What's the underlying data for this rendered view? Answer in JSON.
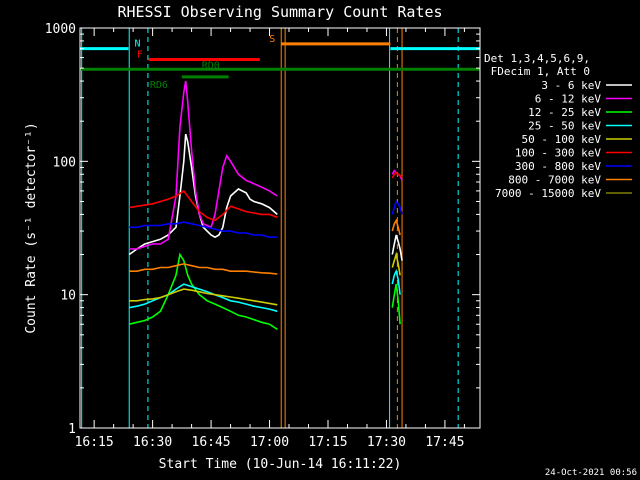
{
  "chart_data": {
    "type": "line",
    "title": "RHESSI Observing Summary Count Rates",
    "xlabel": "Start Time (10-Jun-14 16:11:22)",
    "ylabel": "Count Rate (s⁻¹ detector⁻¹)",
    "x_ticks": [
      "16:15",
      "16:30",
      "16:45",
      "17:00",
      "17:15",
      "17:30",
      "17:45"
    ],
    "x_tick_minutes": [
      15,
      30,
      45,
      60,
      75,
      90,
      105
    ],
    "xlim_minutes": [
      11.37,
      114.0
    ],
    "y_scale": "log",
    "ylim": [
      1,
      1000
    ],
    "y_ticks": [
      "1",
      "10",
      "100",
      "1000"
    ],
    "y_tick_values": [
      1,
      10,
      100,
      1000
    ],
    "legend": {
      "placement": "right",
      "header": [
        "Det 1,3,4,5,6,9,",
        "FDecim 1, Att 0"
      ]
    },
    "series": [
      {
        "name": "3 - 6 keV",
        "color": "#ffffff",
        "segments": [
          {
            "x": [
              24,
              26,
              28,
              30,
              32,
              34,
              36,
              37,
              38,
              38.5,
              39,
              40,
              41,
              42,
              43,
              45,
              46,
              47,
              48,
              49,
              50,
              52,
              54,
              55,
              56,
              58,
              60,
              62
            ],
            "y": [
              20,
              22,
              24,
              25,
              26,
              28,
              32,
              55,
              100,
              160,
              140,
              90,
              55,
              40,
              32,
              28,
              27,
              28,
              32,
              45,
              55,
              62,
              58,
              52,
              50,
              48,
              45,
              40
            ]
          },
          {
            "x": [
              91.5,
              92,
              92.5,
              93,
              93.5,
              94
            ],
            "y": [
              20,
              24,
              28,
              25,
              22,
              18
            ]
          }
        ]
      },
      {
        "name": "6 - 12 keV",
        "color": "#ff00ff",
        "segments": [
          {
            "x": [
              24,
              26,
              28,
              30,
              32,
              34,
              36,
              37,
              38,
              38.5,
              39,
              40,
              41,
              42,
              43,
              45,
              46,
              47,
              48,
              49,
              50,
              52,
              54,
              55,
              56,
              58,
              60,
              62
            ],
            "y": [
              22,
              22,
              23,
              24,
              24,
              26,
              55,
              180,
              330,
              400,
              280,
              120,
              60,
              40,
              34,
              32,
              40,
              60,
              90,
              110,
              100,
              80,
              72,
              70,
              68,
              64,
              60,
              55
            ]
          },
          {
            "x": [
              91.5,
              92,
              92.5,
              93,
              93.5,
              94
            ],
            "y": [
              80,
              85,
              82,
              80,
              78,
              72
            ]
          }
        ]
      },
      {
        "name": "12 - 25 keV",
        "color": "#00ff00",
        "segments": [
          {
            "x": [
              24,
              26,
              28,
              30,
              32,
              34,
              36,
              37,
              38,
              39,
              40,
              42,
              44,
              46,
              48,
              50,
              52,
              54,
              56,
              58,
              60,
              62
            ],
            "y": [
              6,
              6.2,
              6.4,
              6.8,
              7.5,
              10,
              14,
              20,
              18,
              14,
              12,
              10,
              9,
              8.5,
              8,
              7.5,
              7,
              6.8,
              6.5,
              6.2,
              6,
              5.5
            ]
          },
          {
            "x": [
              91.5,
              92,
              92.5,
              93,
              93.5
            ],
            "y": [
              8,
              10,
              12,
              9,
              6
            ]
          }
        ]
      },
      {
        "name": "25 - 50 keV",
        "color": "#00ffff",
        "segments": [
          {
            "x": [
              24,
              26,
              28,
              30,
              32,
              34,
              36,
              38,
              40,
              42,
              44,
              46,
              48,
              50,
              52,
              54,
              56,
              58,
              60,
              62
            ],
            "y": [
              8,
              8.2,
              8.5,
              9,
              9.5,
              10,
              11,
              12,
              11.5,
              11,
              10.5,
              10,
              9.5,
              9,
              8.8,
              8.5,
              8.2,
              8,
              7.8,
              7.5
            ]
          },
          {
            "x": [
              91.5,
              92,
              92.5,
              93,
              93.5
            ],
            "y": [
              12,
              14,
              15,
              13,
              10
            ]
          }
        ]
      },
      {
        "name": "50 - 100 keV",
        "color": "#cccc00",
        "segments": [
          {
            "x": [
              24,
              26,
              28,
              30,
              32,
              34,
              36,
              38,
              40,
              42,
              44,
              46,
              48,
              50,
              52,
              54,
              56,
              58,
              60,
              62
            ],
            "y": [
              9,
              9,
              9.2,
              9.3,
              9.5,
              10,
              10.5,
              11,
              10.8,
              10.5,
              10.2,
              10,
              9.8,
              9.6,
              9.4,
              9.2,
              9,
              8.8,
              8.6,
              8.4
            ]
          },
          {
            "x": [
              91.5,
              92,
              92.5,
              93,
              93.5
            ],
            "y": [
              16,
              18,
              20,
              17,
              14
            ]
          }
        ]
      },
      {
        "name": "100 - 300 keV",
        "color": "#ff0000",
        "segments": [
          {
            "x": [
              24,
              26,
              28,
              30,
              32,
              34,
              36,
              38,
              40,
              42,
              44,
              46,
              48,
              50,
              52,
              54,
              56,
              58,
              60,
              62
            ],
            "y": [
              45,
              46,
              47,
              48,
              50,
              52,
              55,
              60,
              50,
              42,
              38,
              36,
              40,
              46,
              44,
              42,
              41,
              40,
              40,
              38
            ]
          },
          {
            "x": [
              91.5,
              92,
              92.5,
              93,
              93.5,
              94
            ],
            "y": [
              75,
              80,
              82,
              80,
              78,
              76
            ]
          }
        ]
      },
      {
        "name": "300 - 800 keV",
        "color": "#0000ff",
        "segments": [
          {
            "x": [
              24,
              26,
              28,
              30,
              32,
              34,
              36,
              38,
              40,
              42,
              44,
              46,
              48,
              50,
              52,
              54,
              56,
              58,
              60,
              62
            ],
            "y": [
              32,
              32,
              33,
              33,
              33,
              34,
              34,
              35,
              34,
              33,
              32,
              31,
              30,
              30,
              29,
              29,
              28,
              28,
              27,
              27
            ]
          },
          {
            "x": [
              91.5,
              92,
              92.5,
              93,
              93.5,
              94
            ],
            "y": [
              40,
              45,
              50,
              48,
              45,
              40
            ]
          }
        ]
      },
      {
        "name": "800 - 7000 keV",
        "color": "#ff8000",
        "segments": [
          {
            "x": [
              24,
              26,
              28,
              30,
              32,
              34,
              36,
              38,
              40,
              42,
              44,
              46,
              48,
              50,
              52,
              54,
              56,
              58,
              60,
              62
            ],
            "y": [
              15,
              15,
              15.5,
              15.5,
              16,
              16,
              16.5,
              17,
              16.5,
              16,
              16,
              15.5,
              15.5,
              15,
              15,
              15,
              14.8,
              14.6,
              14.5,
              14.3
            ]
          },
          {
            "x": [
              91.5,
              92,
              92.5,
              93,
              93.5
            ],
            "y": [
              30,
              34,
              36,
              32,
              28
            ]
          }
        ]
      },
      {
        "name": "7000 - 15000 keV",
        "color": "#808000",
        "segments": []
      }
    ],
    "flags": [
      {
        "label": "N",
        "color": "#00ffff",
        "y": 700,
        "ranges": [
          [
            11.37,
            23.8
          ],
          [
            91.0,
            114.0
          ]
        ]
      },
      {
        "label": "S",
        "color": "#ff8000",
        "y": 760,
        "ranges": [
          [
            63.0,
            91.0
          ]
        ]
      },
      {
        "label": "F",
        "color": "#ff0000",
        "y": 580,
        "ranges": [
          [
            29.0,
            57.5
          ]
        ]
      },
      {
        "label": "RD0",
        "color": "#008000",
        "y": 490,
        "ranges": [
          [
            11.37,
            114.0
          ]
        ]
      },
      {
        "label": "RD6",
        "color": "#008000",
        "y": 430,
        "ranges": [
          [
            37.5,
            49.5
          ]
        ]
      }
    ],
    "vertical_markers": [
      {
        "x": 11.8,
        "color": "#00ffff",
        "style": "solid"
      },
      {
        "x": 24.0,
        "color": "#00ffff",
        "style": "solid"
      },
      {
        "x": 28.8,
        "color": "#00ffff",
        "style": "dashed"
      },
      {
        "x": 63.0,
        "color": "#ff8000",
        "style": "solid"
      },
      {
        "x": 64.0,
        "color": "#ff8000",
        "style": "solid"
      },
      {
        "x": 90.8,
        "color": "#00ffff",
        "style": "solid"
      },
      {
        "x": 92.8,
        "color": "#ff8000",
        "style": "dashed"
      },
      {
        "x": 94.0,
        "color": "#ff8000",
        "style": "solid"
      },
      {
        "x": 108.4,
        "color": "#00ffff",
        "style": "dashed"
      }
    ]
  },
  "footer": {
    "timestamp": "24-Oct-2021 00:56"
  }
}
